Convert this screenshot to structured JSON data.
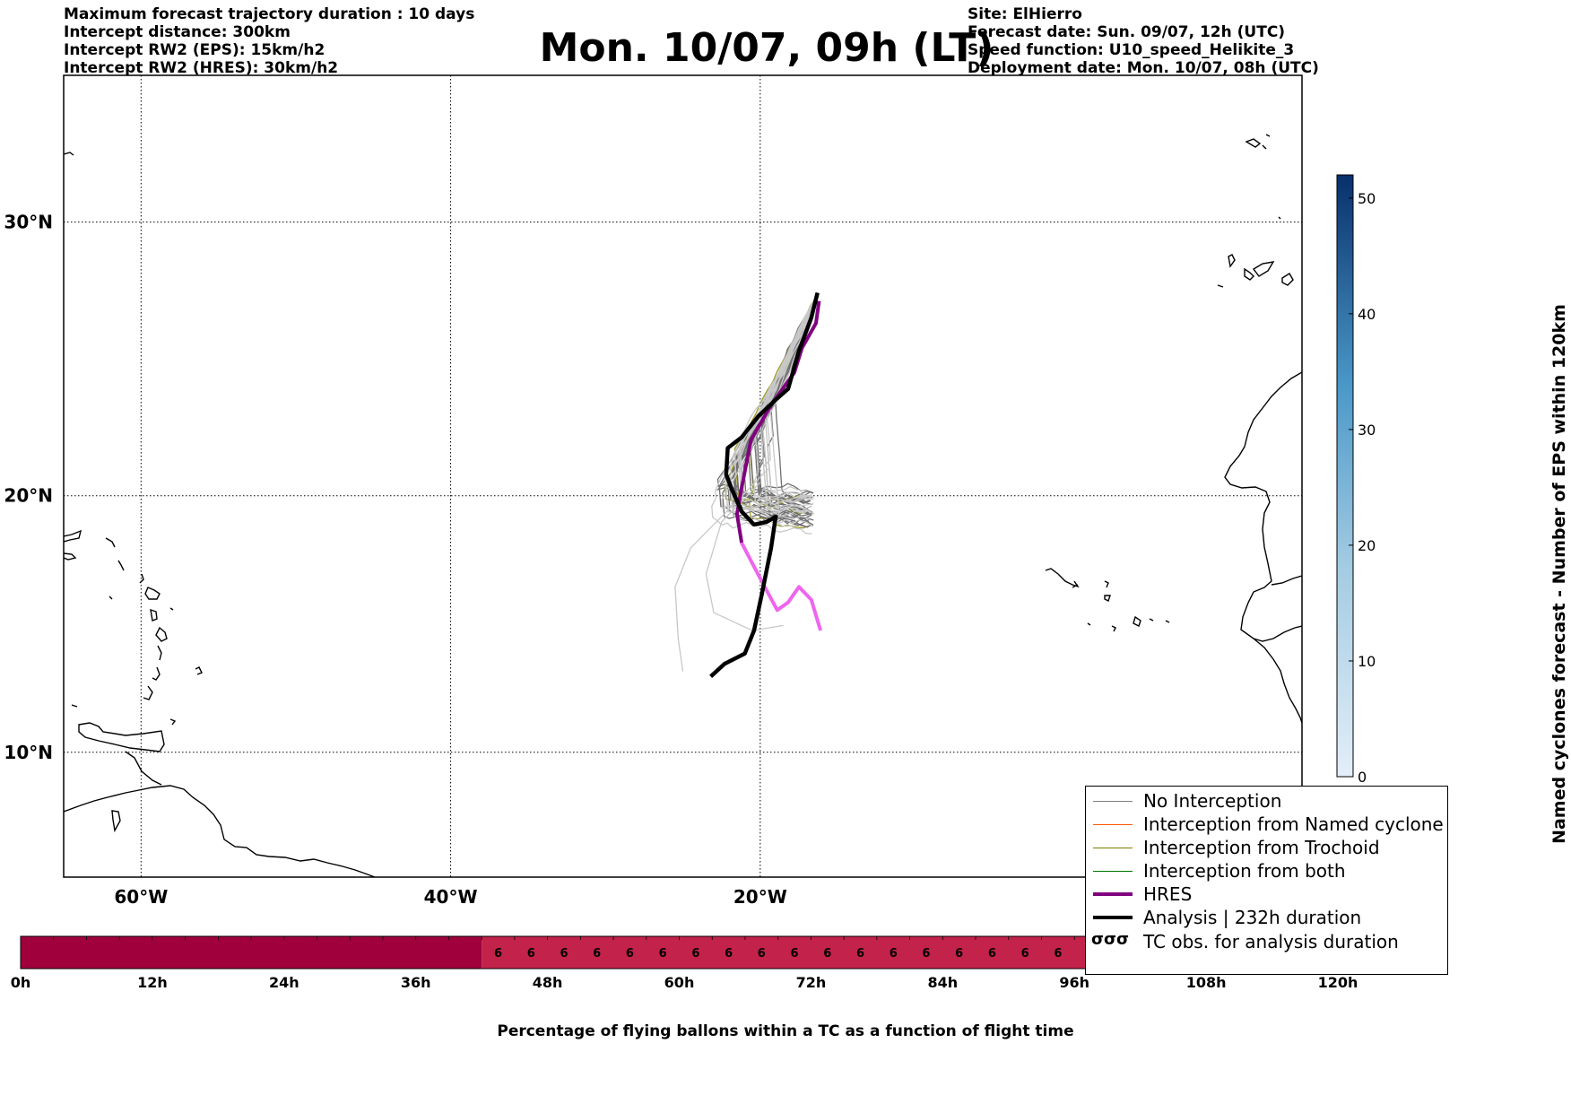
{
  "header_left": [
    "Maximum forecast trajectory duration : 10 days",
    "Intercept distance: 300km",
    "Intercept RW2 (EPS):  15km/h2",
    "Intercept RW2 (HRES): 30km/h2"
  ],
  "header_right": [
    "Site: ElHierro",
    "Forecast date: Sun. 09/07, 12h (UTC)",
    "Speed function: U10_speed_Helikite_3",
    "Deployment date: Mon. 10/07, 08h (UTC)"
  ],
  "title": "Mon. 10/07, 09h (LT)",
  "map": {
    "lon_range": [
      -65,
      15
    ],
    "lat_range": [
      5,
      35
    ],
    "lon_ticks": [
      {
        "value": -60,
        "label": "60°W"
      },
      {
        "value": -40,
        "label": "40°W"
      },
      {
        "value": -20,
        "label": "20°W"
      }
    ],
    "lat_ticks": [
      {
        "value": 30,
        "label": "30°N"
      },
      {
        "value": 20,
        "label": "20°N"
      },
      {
        "value": 10,
        "label": "10°N"
      }
    ],
    "grid": true
  },
  "legend": {
    "items": [
      {
        "label": "No Interception",
        "color": "#808080",
        "style": "thin"
      },
      {
        "label": "Interception from Named cyclone",
        "color": "#ff5500",
        "style": "thin"
      },
      {
        "label": "Interception from Trochoid",
        "color": "#808000",
        "style": "thin"
      },
      {
        "label": "Interception from both",
        "color": "#007700",
        "style": "thin"
      },
      {
        "label": "HRES",
        "color": "#800080",
        "style": "thick"
      },
      {
        "label": "Analysis | 232h duration",
        "color": "#000000",
        "style": "thick"
      },
      {
        "label": "TC obs. for analysis duration",
        "color": "#000000",
        "style": "symbol",
        "symbol": "σσσ"
      }
    ]
  },
  "colorbar": {
    "label": "Named cyclones forecast - Number of EPS within 120km",
    "min": 0,
    "max": 52,
    "ticks": [
      0,
      10,
      20,
      30,
      40,
      50
    ],
    "color_low": "#e3eef9",
    "color_high": "#08306b"
  },
  "timebar": {
    "title": "Percentage of flying ballons within a TC as a function of flight time",
    "hours": [
      0,
      120
    ],
    "ticks": [
      "0h",
      "12h",
      "24h",
      "36h",
      "48h",
      "60h",
      "72h",
      "84h",
      "96h",
      "108h",
      "120h"
    ],
    "segment_value_label": "6",
    "dark_until_hour": 42,
    "color_dark": "#a0003c",
    "color_light": "#c3224a"
  },
  "chart_data": {
    "type": "line",
    "title": "Mon. 10/07, 09h (LT)",
    "xlabel": "",
    "ylabel": "",
    "xlim": [
      -65,
      15
    ],
    "ylim": [
      5,
      35
    ],
    "series": [
      {
        "name": "HRES",
        "points": [
          [
            -16.2,
            27.2
          ],
          [
            -16.4,
            26.4
          ],
          [
            -17.3,
            25.5
          ],
          [
            -17.8,
            24.6
          ],
          [
            -19.3,
            23.4
          ],
          [
            -20.6,
            22.1
          ],
          [
            -20.9,
            21.2
          ],
          [
            -21.2,
            20.3
          ],
          [
            -21.5,
            19.3
          ],
          [
            -21.2,
            18.2
          ],
          [
            -20.5,
            17.4
          ],
          [
            -19.8,
            16.6
          ],
          [
            -18.9,
            15.6
          ],
          [
            -18.2,
            15.9
          ],
          [
            -17.5,
            16.5
          ],
          [
            -16.7,
            16.0
          ],
          [
            -16.1,
            14.8
          ]
        ]
      },
      {
        "name": "Analysis | 232h duration",
        "points": [
          [
            -16.3,
            27.5
          ],
          [
            -16.7,
            26.6
          ],
          [
            -17.5,
            25.4
          ],
          [
            -18.2,
            24.0
          ],
          [
            -19.0,
            23.6
          ],
          [
            -20.1,
            23.0
          ],
          [
            -21.2,
            22.2
          ],
          [
            -22.1,
            21.8
          ],
          [
            -22.2,
            20.8
          ],
          [
            -21.8,
            20.2
          ],
          [
            -21.2,
            19.4
          ],
          [
            -20.4,
            18.9
          ],
          [
            -19.6,
            19.0
          ],
          [
            -19.0,
            19.2
          ],
          [
            -19.3,
            18.0
          ],
          [
            -19.9,
            16.2
          ],
          [
            -20.4,
            14.8
          ],
          [
            -21.0,
            13.9
          ],
          [
            -22.3,
            13.5
          ],
          [
            -23.2,
            13.0
          ]
        ]
      }
    ]
  }
}
